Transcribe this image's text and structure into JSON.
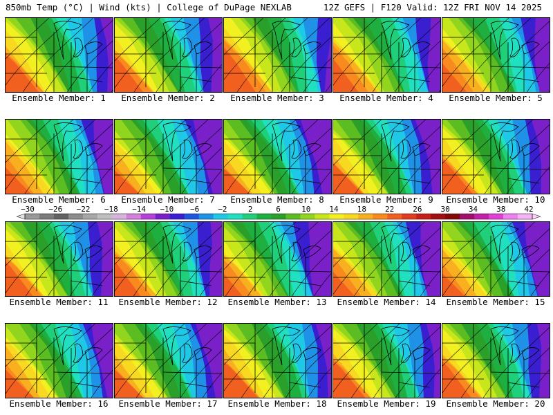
{
  "header": {
    "left": "850mb Temp (°C) | Wind (kts) | College of DuPage NEXLAB",
    "right": "12Z GEFS | F120 Valid: 12Z FRI NOV 14 2025"
  },
  "colorbar": {
    "labels": [
      "-30",
      "-26",
      "-22",
      "-18",
      "-14",
      "-10",
      "-6",
      "-2",
      "2",
      "6",
      "10",
      "14",
      "18",
      "22",
      "26",
      "30",
      "34",
      "38",
      "42"
    ],
    "colors": [
      "#9a9a9a",
      "#7c7c7c",
      "#626262",
      "#8c8c8c",
      "#a8a8a8",
      "#bfbfbf",
      "#d6b4dc",
      "#d47fdc",
      "#b640d8",
      "#7a20c8",
      "#3a1fd0",
      "#1f56e0",
      "#1f92e8",
      "#20c8e8",
      "#21e0c0",
      "#1fcf7a",
      "#1fae40",
      "#2aa02a",
      "#5cbd23",
      "#92d51e",
      "#c8e61c",
      "#f2f020",
      "#f8d820",
      "#f8b020",
      "#f88a20",
      "#f26020",
      "#e03c20",
      "#c42018",
      "#a01010",
      "#840a0a",
      "#a0106a",
      "#c220a8",
      "#e040d8",
      "#f080f0",
      "#f6b4f6"
    ]
  },
  "members": [
    {
      "label": "Ensemble Member: 1",
      "warmth": 0.55
    },
    {
      "label": "Ensemble Member: 2",
      "warmth": 0.62
    },
    {
      "label": "Ensemble Member: 3",
      "warmth": 0.4
    },
    {
      "label": "Ensemble Member: 4",
      "warmth": 0.55
    },
    {
      "label": "Ensemble Member: 5",
      "warmth": 0.58
    },
    {
      "label": "Ensemble Member: 6",
      "warmth": 0.62
    },
    {
      "label": "Ensemble Member: 7",
      "warmth": 0.75
    },
    {
      "label": "Ensemble Member: 8",
      "warmth": 0.78
    },
    {
      "label": "Ensemble Member: 9",
      "warmth": 0.72
    },
    {
      "label": "Ensemble Member: 10",
      "warmth": 0.65
    },
    {
      "label": "Ensemble Member: 11",
      "warmth": 0.65
    },
    {
      "label": "Ensemble Member: 12",
      "warmth": 0.6
    },
    {
      "label": "Ensemble Member: 13",
      "warmth": 0.78
    },
    {
      "label": "Ensemble Member: 14",
      "warmth": 0.68
    },
    {
      "label": "Ensemble Member: 15",
      "warmth": 0.72
    },
    {
      "label": "Ensemble Member: 16",
      "warmth": 0.62
    },
    {
      "label": "Ensemble Member: 17",
      "warmth": 0.7
    },
    {
      "label": "Ensemble Member: 18",
      "warmth": 0.55
    },
    {
      "label": "Ensemble Member: 19",
      "warmth": 0.58
    },
    {
      "label": "Ensemble Member: 20",
      "warmth": 0.6
    }
  ]
}
